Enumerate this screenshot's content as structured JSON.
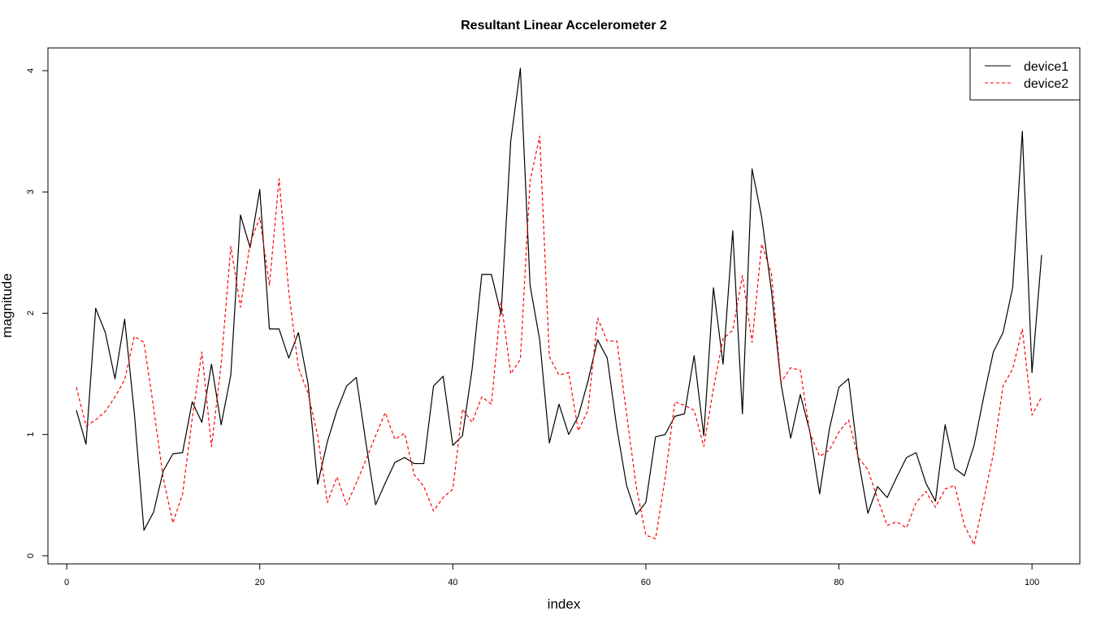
{
  "chart_data": {
    "type": "line",
    "title": "Resultant Linear Accelerometer 2",
    "xlabel": "index",
    "ylabel": "magnitude",
    "xlim": [
      1,
      101
    ],
    "ylim": [
      0,
      4.02
    ],
    "xticks": [
      "0",
      "20",
      "40",
      "60",
      "80",
      "100"
    ],
    "yticks": [
      "0",
      "1",
      "2",
      "3",
      "4"
    ],
    "grid": false,
    "legend_position": "top-right",
    "x": [
      1,
      2,
      3,
      4,
      5,
      6,
      7,
      8,
      9,
      10,
      11,
      12,
      13,
      14,
      15,
      16,
      17,
      18,
      19,
      20,
      21,
      22,
      23,
      24,
      25,
      26,
      27,
      28,
      29,
      30,
      31,
      32,
      33,
      34,
      35,
      36,
      37,
      38,
      39,
      40,
      41,
      42,
      43,
      44,
      45,
      46,
      47,
      48,
      49,
      50,
      51,
      52,
      53,
      54,
      55,
      56,
      57,
      58,
      59,
      60,
      61,
      62,
      63,
      64,
      65,
      66,
      67,
      68,
      69,
      70,
      71,
      72,
      73,
      74,
      75,
      76,
      77,
      78,
      79,
      80,
      81,
      82,
      83,
      84,
      85,
      86,
      87,
      88,
      89,
      90,
      91,
      92,
      93,
      94,
      95,
      96,
      97,
      98,
      99,
      100,
      101
    ],
    "series": [
      {
        "name": "device1",
        "color": "#000000",
        "dash": "solid",
        "values": [
          1.2,
          0.92,
          2.04,
          1.84,
          1.46,
          1.95,
          1.18,
          0.21,
          0.36,
          0.7,
          0.84,
          0.85,
          1.27,
          1.1,
          1.58,
          1.08,
          1.49,
          2.81,
          2.54,
          3.02,
          1.87,
          1.87,
          1.63,
          1.84,
          1.42,
          0.59,
          0.94,
          1.2,
          1.4,
          1.47,
          0.93,
          0.42,
          0.6,
          0.77,
          0.81,
          0.76,
          0.76,
          1.4,
          1.48,
          0.91,
          0.99,
          1.54,
          2.32,
          2.32,
          1.99,
          3.42,
          4.02,
          2.23,
          1.78,
          0.93,
          1.25,
          1.0,
          1.15,
          1.44,
          1.78,
          1.63,
          1.05,
          0.58,
          0.34,
          0.44,
          0.98,
          1.0,
          1.15,
          1.17,
          1.65,
          0.99,
          2.21,
          1.58,
          2.68,
          1.17,
          3.19,
          2.79,
          2.19,
          1.42,
          0.97,
          1.33,
          1.02,
          0.51,
          1.04,
          1.39,
          1.46,
          0.8,
          0.35,
          0.57,
          0.48,
          0.65,
          0.81,
          0.85,
          0.6,
          0.45,
          1.08,
          0.72,
          0.66,
          0.91,
          1.31,
          1.68,
          1.84,
          2.21,
          3.5,
          1.51,
          2.48
        ]
      },
      {
        "name": "device2",
        "color": "#ff0000",
        "dash": "dashed",
        "values": [
          1.39,
          1.07,
          1.12,
          1.19,
          1.31,
          1.45,
          1.81,
          1.76,
          1.22,
          0.64,
          0.27,
          0.51,
          1.13,
          1.68,
          0.9,
          1.58,
          2.55,
          2.05,
          2.58,
          2.79,
          2.23,
          3.11,
          2.18,
          1.55,
          1.34,
          0.99,
          0.44,
          0.65,
          0.42,
          0.6,
          0.79,
          0.99,
          1.18,
          0.96,
          1.01,
          0.67,
          0.57,
          0.37,
          0.48,
          0.55,
          1.21,
          1.1,
          1.31,
          1.25,
          2.1,
          1.5,
          1.62,
          3.09,
          3.46,
          1.64,
          1.49,
          1.51,
          1.03,
          1.2,
          1.96,
          1.77,
          1.77,
          1.17,
          0.57,
          0.17,
          0.14,
          0.64,
          1.27,
          1.24,
          1.2,
          0.9,
          1.38,
          1.79,
          1.86,
          2.31,
          1.76,
          2.57,
          2.33,
          1.43,
          1.55,
          1.53,
          1.01,
          0.82,
          0.87,
          1.02,
          1.12,
          0.81,
          0.71,
          0.47,
          0.25,
          0.28,
          0.23,
          0.44,
          0.53,
          0.4,
          0.55,
          0.58,
          0.25,
          0.09,
          0.46,
          0.84,
          1.4,
          1.54,
          1.87,
          1.16,
          1.31
        ]
      }
    ]
  }
}
